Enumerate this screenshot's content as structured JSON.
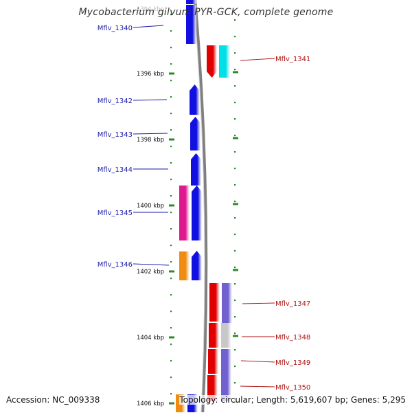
{
  "title": "Mycobacterium gilvum PYR-GCK, complete genome",
  "footer": {
    "accession": "Accession: NC_009338",
    "topology": "Topology: circular; Length: 5,619,607 bp; Genes: 5,295"
  },
  "colors": {
    "blue": "#1010e0",
    "red": "#e00000",
    "cyan": "#00e0e8",
    "magenta": "#e01890",
    "orange": "#f08a10",
    "purple": "#7060d0",
    "grey": "#c8c8c8",
    "label_left": "#1a1aa8",
    "label_right": "#b01010",
    "tick": "#2a8a2a"
  },
  "kbp_marks": [
    {
      "label": "1396 kbp",
      "kbp": 1396
    },
    {
      "label": "1398 kbp",
      "kbp": 1398
    },
    {
      "label": "1400 kbp",
      "kbp": 1400
    },
    {
      "label": "1402 kbp",
      "kbp": 1402
    },
    {
      "label": "1404 kbp",
      "kbp": 1404
    },
    {
      "label": "1406 kbp",
      "kbp": 1406
    }
  ],
  "genes_left": [
    {
      "label": "Mflv_1340"
    },
    {
      "label": "Mflv_1342"
    },
    {
      "label": "Mflv_1343"
    },
    {
      "label": "Mflv_1344"
    },
    {
      "label": "Mflv_1345"
    },
    {
      "label": "Mflv_1346"
    }
  ],
  "genes_right": [
    {
      "label": "Mflv_1341"
    },
    {
      "label": "Mflv_1347"
    },
    {
      "label": "Mflv_1348"
    },
    {
      "label": "Mflv_1349"
    },
    {
      "label": "Mflv_1350"
    }
  ]
}
